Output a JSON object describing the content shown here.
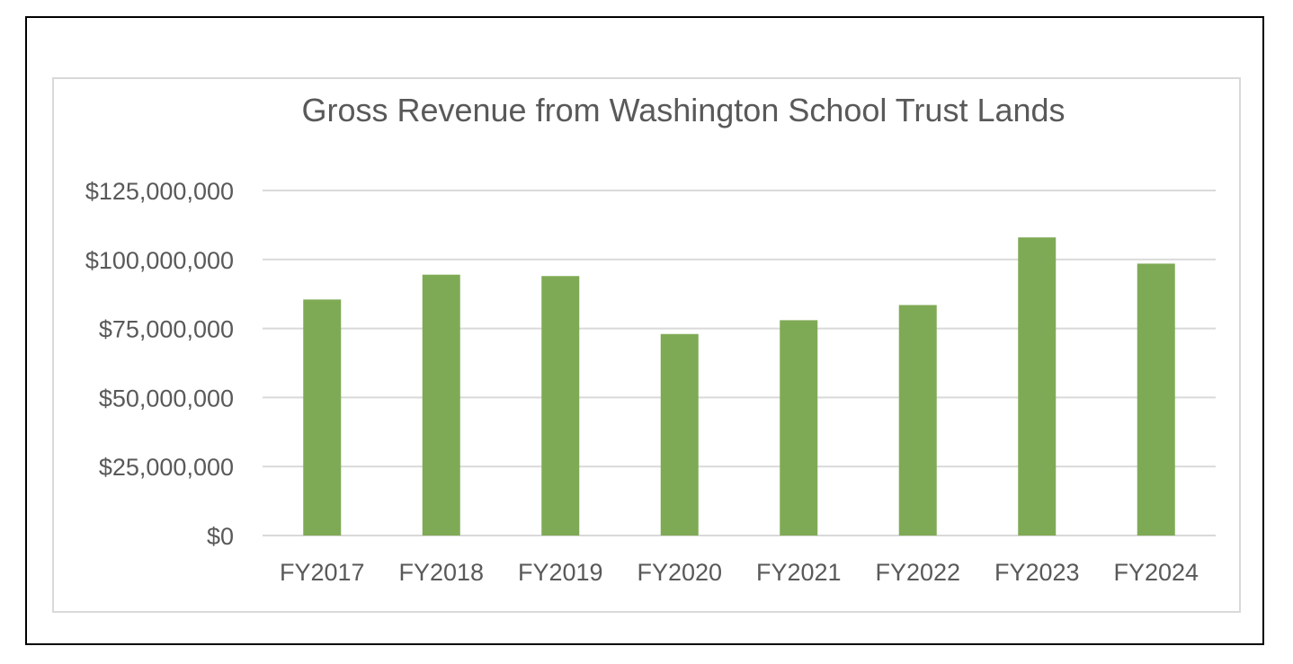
{
  "chart_data": {
    "type": "bar",
    "title": "Gross Revenue from Washington School Trust Lands",
    "xlabel": "",
    "ylabel": "",
    "categories": [
      "FY2017",
      "FY2018",
      "FY2019",
      "FY2020",
      "FY2021",
      "FY2022",
      "FY2023",
      "FY2024"
    ],
    "values": [
      85500000,
      94500000,
      94000000,
      73000000,
      78000000,
      83500000,
      108000000,
      98500000
    ],
    "ylim": [
      0,
      125000000
    ],
    "y_ticks": [
      0,
      25000000,
      50000000,
      75000000,
      100000000,
      125000000
    ],
    "y_tick_labels": [
      "$0",
      "$25,000,000",
      "$50,000,000",
      "$75,000,000",
      "$100,000,000",
      "$125,000,000"
    ],
    "grid": true,
    "legend": "none",
    "bar_color": "#7faa55",
    "grid_color": "#d9d9d9",
    "text_color": "#595959"
  }
}
